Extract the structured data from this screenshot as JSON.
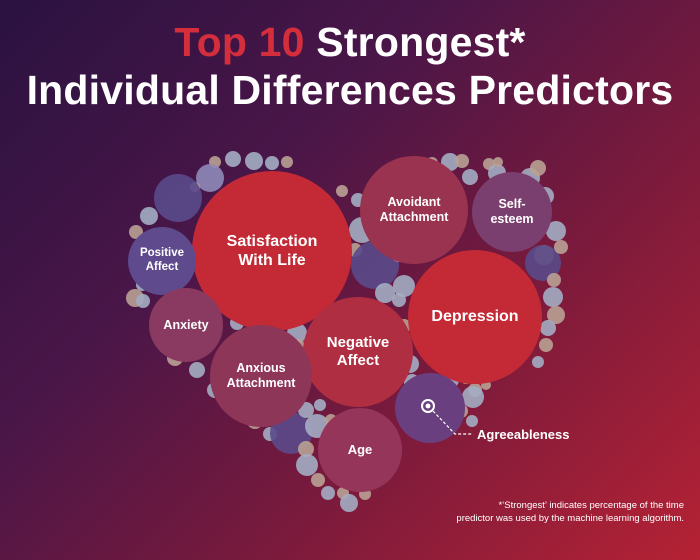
{
  "title": {
    "line1_accent": "Top 10",
    "line1_rest": "Strongest*",
    "line2": "Individual Differences Predictors"
  },
  "predictors": [
    {
      "id": "satisfaction",
      "label": "Satisfaction\nWith Life",
      "color": "#c42a35"
    },
    {
      "id": "depression",
      "label": "Depression",
      "color": "#c42a35"
    },
    {
      "id": "negative-affect",
      "label": "Negative\nAffect",
      "color": "#b02e42"
    },
    {
      "id": "avoidant-attachment",
      "label": "Avoidant\nAttachment",
      "color": "#9a3350"
    },
    {
      "id": "self-esteem",
      "label": "Self-\nesteem",
      "color": "#7a3f6e"
    },
    {
      "id": "positive-affect",
      "label": "Positive\nAffect",
      "color": "#5e4a8c"
    },
    {
      "id": "anxiety",
      "label": "Anxiety",
      "color": "#8a3a60"
    },
    {
      "id": "anxious-attachment",
      "label": "Anxious\nAttachment",
      "color": "#8e3658"
    },
    {
      "id": "age",
      "label": "Age",
      "color": "#96355a"
    },
    {
      "id": "agreeableness",
      "label": "Agreeableness",
      "color": "#6a3f80"
    }
  ],
  "footnote": {
    "line1": "*‘Strongest’ indicates percentage of the time",
    "line2": "predictor was used by the machine learning algorithm."
  },
  "colors": {
    "filler_lavender": "#8f89b8",
    "filler_blue": "#a3adc3",
    "filler_tan": "#b9a194",
    "filler_purple": "#5a4a8a"
  }
}
